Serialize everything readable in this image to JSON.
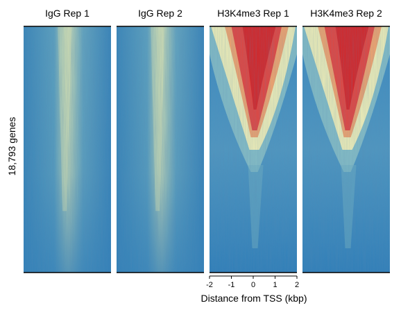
{
  "chart_data": {
    "type": "heatmap",
    "ylabel": "18,793 genes",
    "xlabel": "Distance from TSS (kbp)",
    "x_ticks": [
      "-2",
      "-1",
      "0",
      "1",
      "2"
    ],
    "xlim": [
      -2,
      2
    ],
    "colors": {
      "low": "#2f7fb9",
      "mid_low": "#8cc3c9",
      "mid": "#f3f0b6",
      "high": "#e8423a",
      "max": "#d7191c"
    },
    "panels": [
      {
        "title": "IgG Rep 1",
        "type": "igg"
      },
      {
        "title": "IgG Rep 2",
        "type": "igg"
      },
      {
        "title": "H3K4me3 Rep 1",
        "type": "mark"
      },
      {
        "title": "H3K4me3 Rep 2",
        "type": "mark"
      }
    ]
  }
}
